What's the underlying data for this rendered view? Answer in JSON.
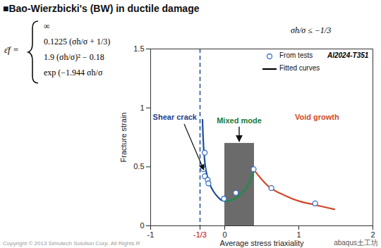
{
  "header": "■Bao-Wierzbicki's (BW) in ductile damage",
  "formula": {
    "lhs": "ε̄f =",
    "cases": [
      {
        "expression": "∞",
        "condition": "σh/σ ≤ −1/3"
      },
      {
        "expression": "0.1225 (σh/σ + 1/3)"
      },
      {
        "expression": "1.9 (σh/σ)² − 0.18"
      },
      {
        "expression": "exp (−1.944 σh/σ"
      }
    ]
  },
  "footer": "Copyright © 2013 Simutech Solution Corp. All Rights R",
  "watermark": "abaqus土工坊",
  "chart_data": {
    "type": "line",
    "x_label": "Average stress triaxiality",
    "y_label": "Fracture strain",
    "xlim": [
      -1,
      2
    ],
    "xticks": [
      -1,
      {
        "value": -0.3333,
        "label": "-1/3"
      },
      0,
      1,
      2
    ],
    "ylim": [
      0,
      1.5
    ],
    "yticks": [
      0,
      0.5,
      1,
      1.5
    ],
    "grid": false,
    "legend": "top-right",
    "series": [
      {
        "name": "From tests",
        "type": "scatter",
        "marker": "circle",
        "color": "#3a70c8",
        "x": [
          -0.29,
          -0.27,
          -0.27,
          -0.23,
          -0.22,
          -0.01,
          0.15,
          0.39,
          0.63,
          1.22
        ],
        "values": [
          0.48,
          0.62,
          0.42,
          0.39,
          0.36,
          0.23,
          0.28,
          0.48,
          0.32,
          0.19
        ]
      },
      {
        "name": "Fitted curves",
        "type": "line",
        "color": "#000000",
        "line_style": "solid",
        "parts": [
          {
            "color": "#1f4e9a",
            "x": [
              -0.3,
              -0.28,
              -0.25,
              -0.2,
              -0.15,
              -0.1,
              -0.05,
              0
            ],
            "values": [
              0.9,
              0.62,
              0.46,
              0.35,
              0.29,
              0.25,
              0.22,
              0.21
            ]
          },
          {
            "color": "#1a8f4a",
            "x": [
              0,
              0.1,
              0.2,
              0.3,
              0.4
            ],
            "values": [
              0.21,
              0.22,
              0.26,
              0.33,
              0.47
            ]
          },
          {
            "color": "#d24a2a",
            "x": [
              0.4,
              0.6,
              0.8,
              1.0,
              1.2,
              1.48
            ],
            "values": [
              0.47,
              0.33,
              0.26,
              0.21,
              0.18,
              0.14
            ]
          }
        ]
      }
    ],
    "regions": [
      {
        "label": "Mixed mode",
        "x": [
          0,
          0.4
        ],
        "y": [
          0,
          0.7
        ],
        "color": "#6b6b6b",
        "label_color": "#1a7a3a"
      }
    ],
    "reference_lines": [
      {
        "x": -0.3333,
        "line_style": "dashed",
        "color": "#1f4e9a"
      }
    ],
    "annotations": [
      {
        "text": "Shear crack",
        "color": "#1f3f8a"
      },
      {
        "text": "Void growth",
        "color": "#d24a2a"
      },
      {
        "text": "Al2024-T351",
        "color": "#000000"
      }
    ]
  }
}
